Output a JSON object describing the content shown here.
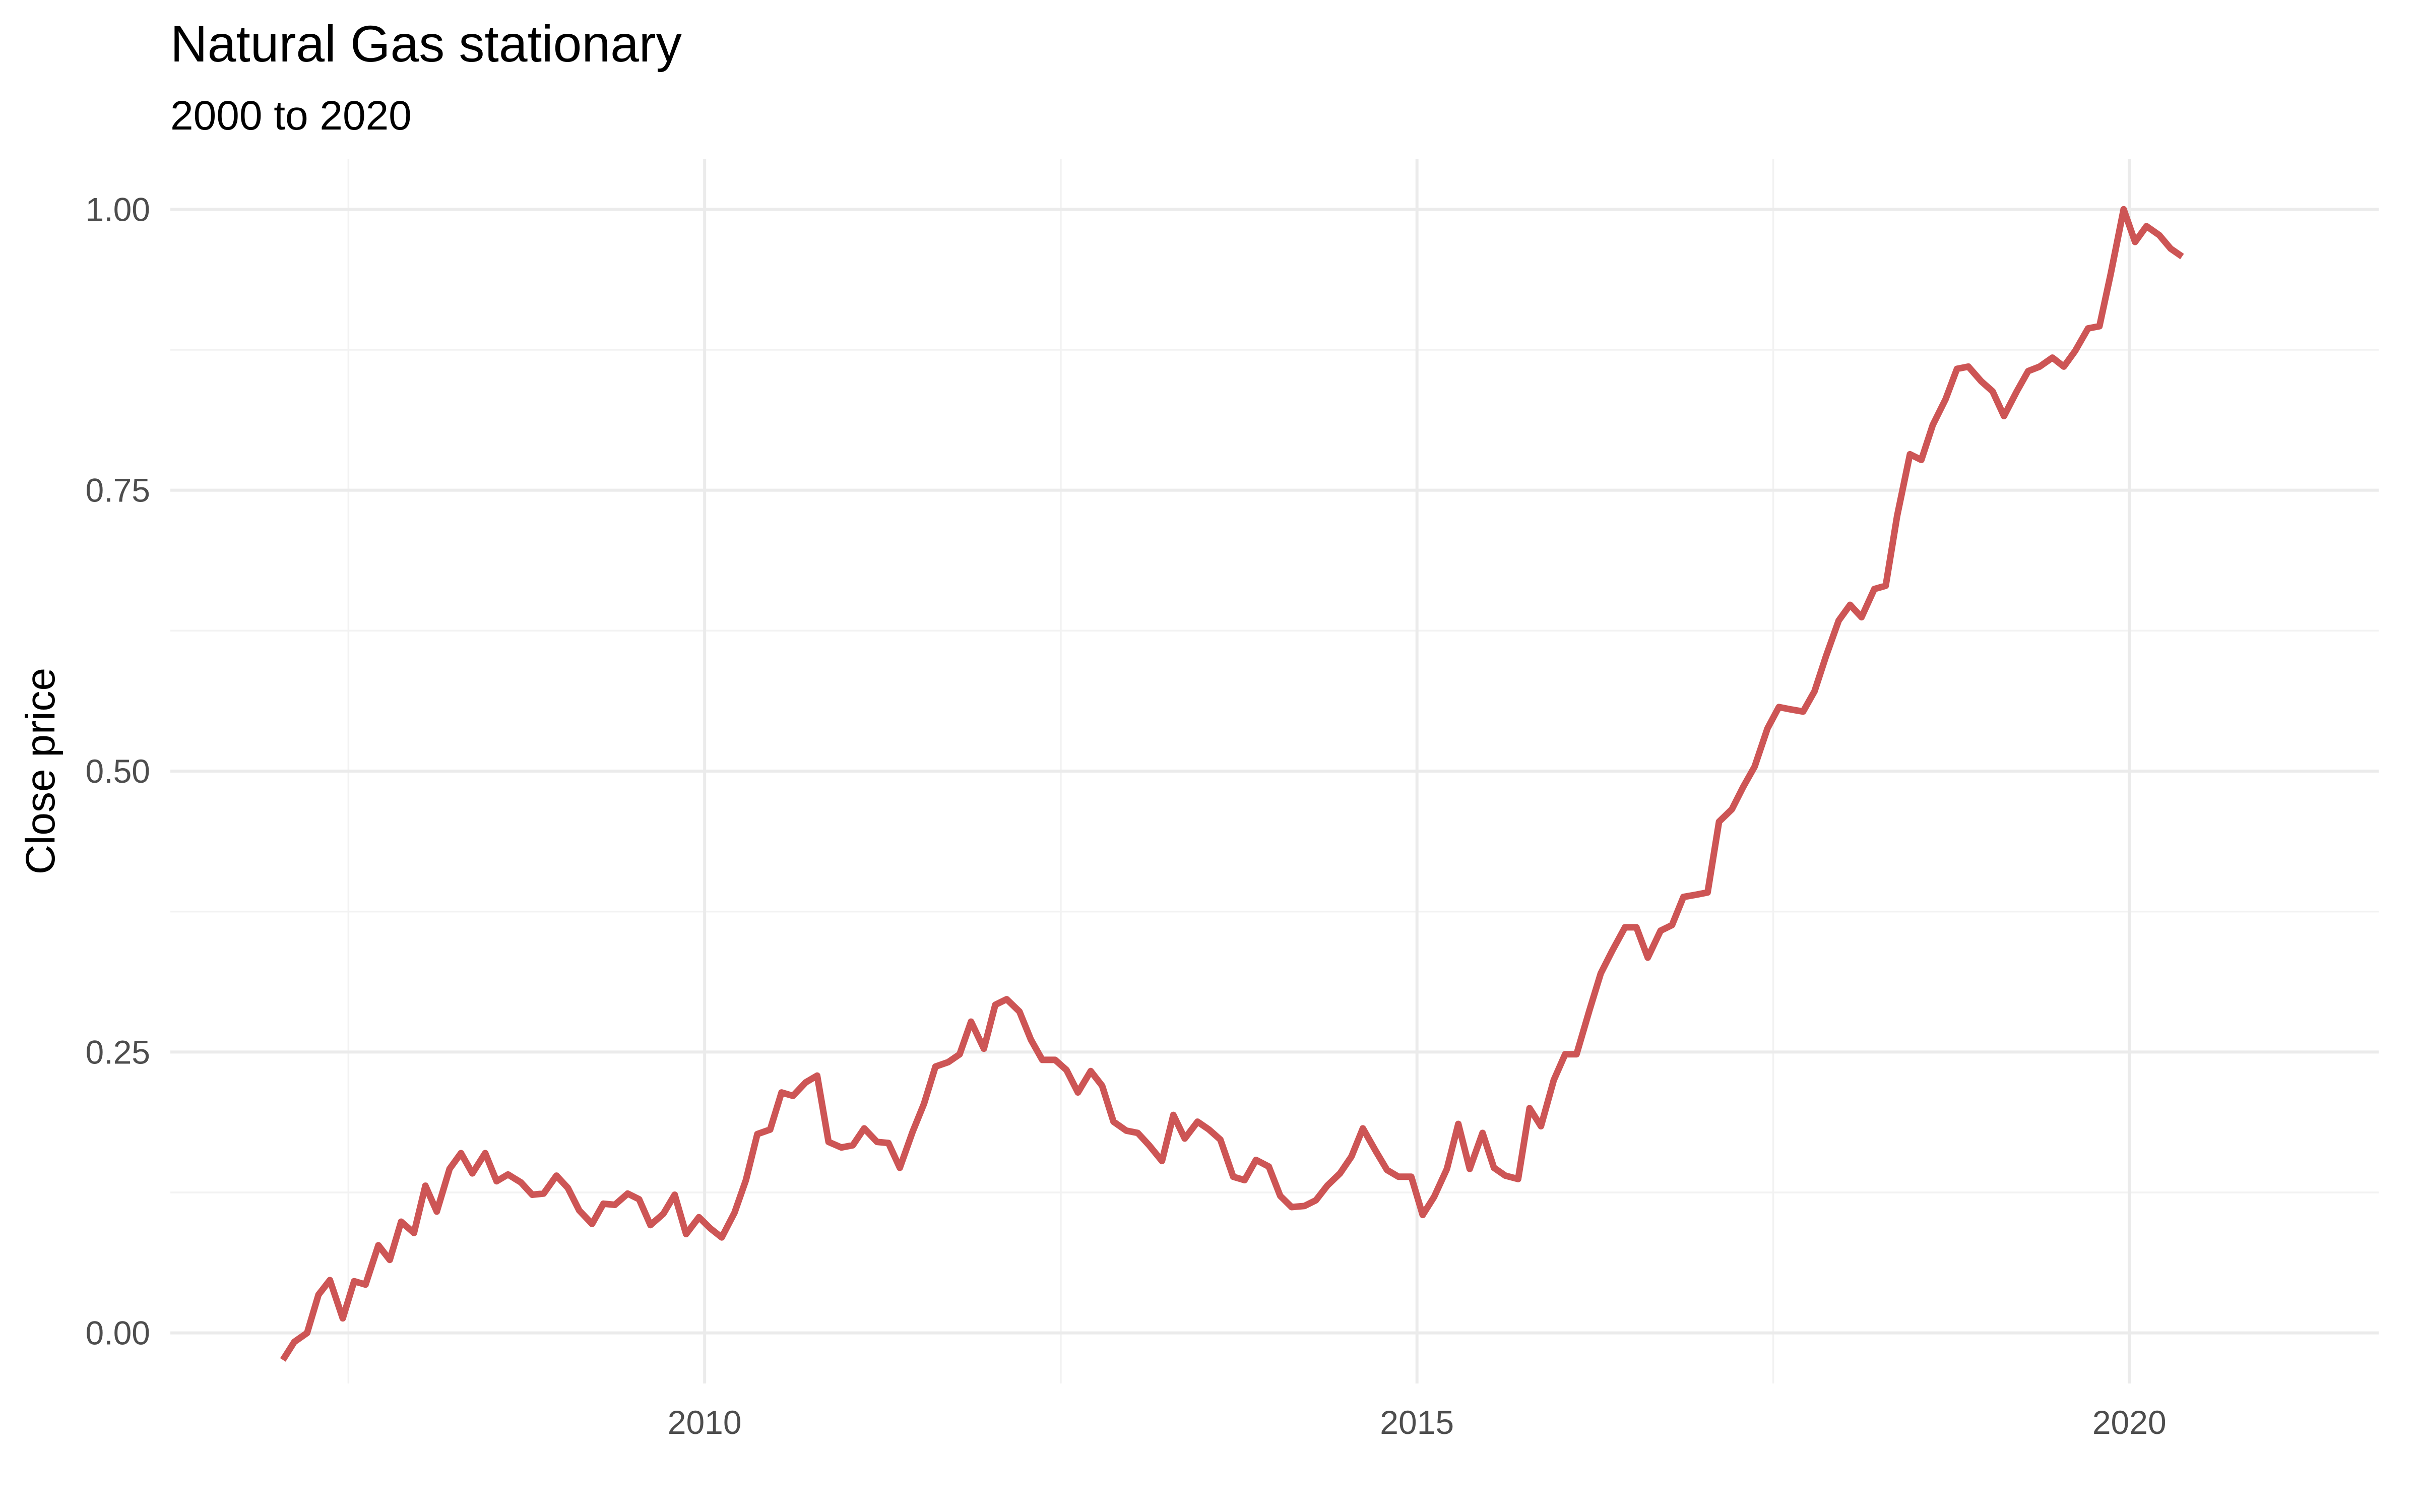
{
  "chart_data": {
    "type": "line",
    "title": "Natural Gas stationary",
    "subtitle": "2000 to 2020",
    "xlabel": "",
    "ylabel": "Close price",
    "xlim": [
      2006.25,
      2021.75
    ],
    "ylim": [
      -0.045,
      1.045
    ],
    "x_ticks": [
      2010,
      2015,
      2020
    ],
    "x_minor_ticks": [
      2007.5,
      2012.5,
      2017.5
    ],
    "y_ticks": [
      0.0,
      0.25,
      0.5,
      0.75,
      1.0
    ],
    "y_tick_labels": [
      "0.00",
      "0.25",
      "0.50",
      "0.75",
      "1.00"
    ],
    "y_minor_ticks": [
      0.125,
      0.375,
      0.625,
      0.875
    ],
    "grid": true,
    "legend": "none",
    "line_color": "#CD5555",
    "series": [
      {
        "x": [
          2007.04,
          2007.12,
          2007.21,
          2007.29,
          2007.37,
          2007.46,
          2007.54,
          2007.62,
          2007.71,
          2007.79,
          2007.87,
          2007.96,
          2008.04,
          2008.12,
          2008.21,
          2008.29,
          2008.37,
          2008.46,
          2008.54,
          2008.62,
          2008.71,
          2008.79,
          2008.87,
          2008.96,
          2009.04,
          2009.12,
          2009.21,
          2009.29,
          2009.37,
          2009.46,
          2009.54,
          2009.62,
          2009.71,
          2009.79,
          2009.87,
          2009.96,
          2010.04,
          2010.12,
          2010.21,
          2010.29,
          2010.37,
          2010.46,
          2010.54,
          2010.62,
          2010.71,
          2010.79,
          2010.87,
          2010.96,
          2011.04,
          2011.12,
          2011.21,
          2011.29,
          2011.37,
          2011.46,
          2011.54,
          2011.62,
          2011.71,
          2011.79,
          2011.87,
          2011.96,
          2012.04,
          2012.12,
          2012.21,
          2012.29,
          2012.37,
          2012.46,
          2012.54,
          2012.62,
          2012.71,
          2012.79,
          2012.87,
          2012.96,
          2013.04,
          2013.12,
          2013.21,
          2013.29,
          2013.37,
          2013.46,
          2013.54,
          2013.62,
          2013.71,
          2013.79,
          2013.87,
          2013.96,
          2014.04,
          2014.12,
          2014.21,
          2014.29,
          2014.37,
          2014.46,
          2014.54,
          2014.62,
          2014.71,
          2014.79,
          2014.87,
          2014.96,
          2015.04,
          2015.12,
          2015.21,
          2015.29,
          2015.37,
          2015.46,
          2015.54,
          2015.62,
          2015.71,
          2015.79,
          2015.87,
          2015.96,
          2016.04,
          2016.12,
          2016.21,
          2016.29,
          2016.37,
          2016.46,
          2016.54,
          2016.62,
          2016.71,
          2016.79,
          2016.87,
          2016.96,
          2017.04,
          2017.12,
          2017.21,
          2017.29,
          2017.37,
          2017.46,
          2017.54,
          2017.62,
          2017.71,
          2017.79,
          2017.87,
          2017.96,
          2018.04,
          2018.12,
          2018.21,
          2018.29,
          2018.37,
          2018.46,
          2018.54,
          2018.62,
          2018.71,
          2018.79,
          2018.87,
          2018.96,
          2019.04,
          2019.12,
          2019.21,
          2019.29,
          2019.37,
          2019.46,
          2019.54,
          2019.62,
          2019.71,
          2019.79,
          2019.87,
          2019.96,
          2020.04,
          2020.12,
          2020.21,
          2020.29,
          2020.37
        ],
        "values": [
          -0.024,
          -0.008,
          0.0,
          0.034,
          0.047,
          0.013,
          0.046,
          0.043,
          0.078,
          0.065,
          0.099,
          0.089,
          0.131,
          0.108,
          0.146,
          0.16,
          0.142,
          0.16,
          0.135,
          0.141,
          0.134,
          0.123,
          0.124,
          0.14,
          0.129,
          0.109,
          0.097,
          0.115,
          0.114,
          0.124,
          0.119,
          0.096,
          0.106,
          0.123,
          0.088,
          0.103,
          0.093,
          0.085,
          0.107,
          0.136,
          0.177,
          0.181,
          0.214,
          0.211,
          0.223,
          0.229,
          0.17,
          0.165,
          0.167,
          0.182,
          0.17,
          0.169,
          0.147,
          0.179,
          0.204,
          0.237,
          0.241,
          0.248,
          0.277,
          0.253,
          0.292,
          0.297,
          0.286,
          0.261,
          0.243,
          0.243,
          0.234,
          0.214,
          0.233,
          0.22,
          0.188,
          0.18,
          0.178,
          0.167,
          0.153,
          0.194,
          0.173,
          0.188,
          0.181,
          0.172,
          0.139,
          0.136,
          0.154,
          0.148,
          0.122,
          0.112,
          0.113,
          0.118,
          0.131,
          0.142,
          0.157,
          0.182,
          0.162,
          0.145,
          0.139,
          0.139,
          0.105,
          0.121,
          0.146,
          0.186,
          0.146,
          0.178,
          0.147,
          0.14,
          0.137,
          0.2,
          0.184,
          0.225,
          0.248,
          0.248,
          0.287,
          0.32,
          0.34,
          0.361,
          0.361,
          0.334,
          0.358,
          0.363,
          0.388,
          0.39,
          0.392,
          0.455,
          0.466,
          0.486,
          0.504,
          0.538,
          0.557,
          0.555,
          0.553,
          0.571,
          0.602,
          0.634,
          0.648,
          0.637,
          0.662,
          0.665,
          0.727,
          0.782,
          0.777,
          0.808,
          0.831,
          0.858,
          0.86,
          0.847,
          0.838,
          0.816,
          0.838,
          0.856,
          0.86,
          0.868,
          0.86,
          0.874,
          0.894,
          0.896,
          0.943,
          1.0,
          0.971,
          0.985,
          0.977,
          0.965,
          0.958
        ]
      }
    ]
  }
}
